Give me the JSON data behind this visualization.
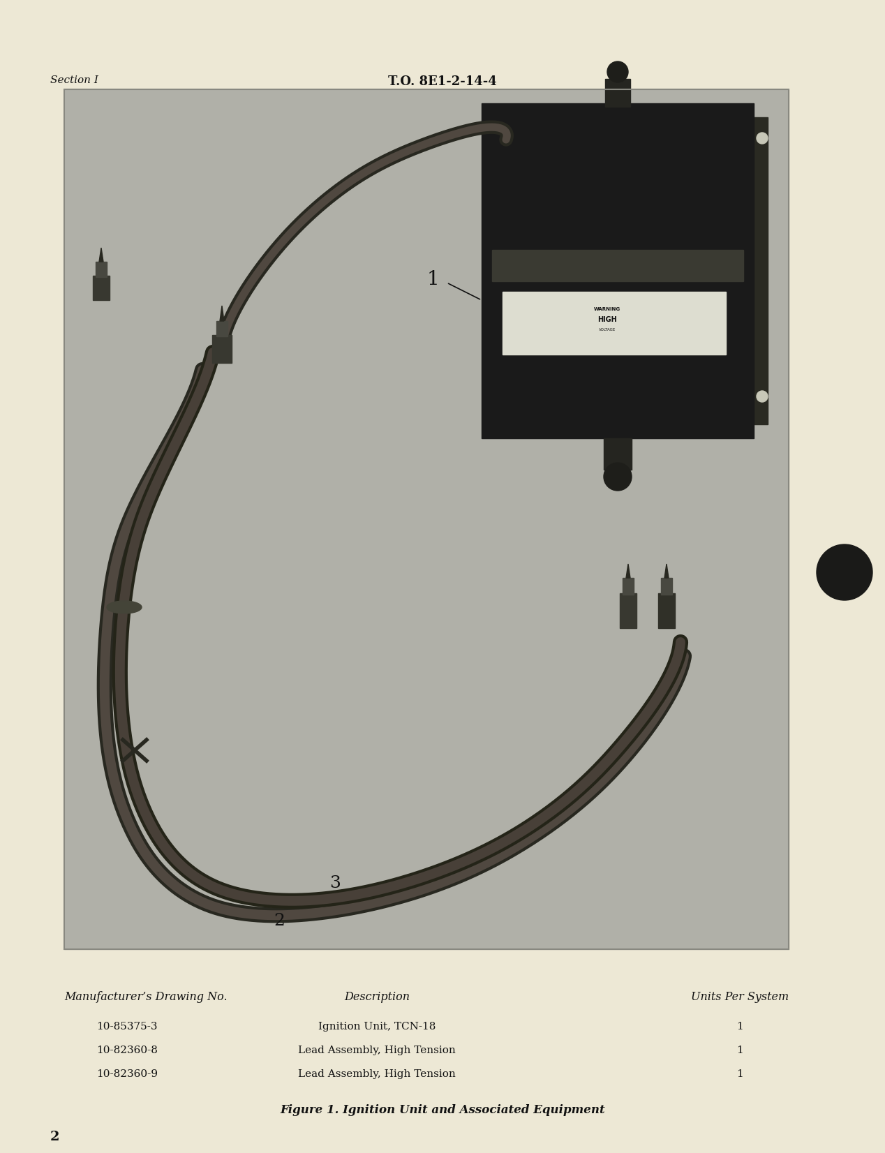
{
  "bg_color": "#ede8d5",
  "header_left": "Section I",
  "header_center": "T.O. 8E1-2-14-4",
  "page_number": "2",
  "table_header": [
    "Manufacturer’s Drawing No.",
    "Description",
    "Units Per System"
  ],
  "table_rows": [
    [
      "10-85375-3",
      "Ignition Unit, TCN-18",
      "1"
    ],
    [
      "10-82360-8",
      "Lead Assembly, High Tension",
      "1"
    ],
    [
      "10-82360-9",
      "Lead Assembly, High Tension",
      "1"
    ]
  ],
  "figure_caption": "Figure 1. Ignition Unit and Associated Equipment",
  "text_color": "#111111",
  "photo_bg": "#b0b0a8",
  "photo_border": "#888880",
  "box_color": "#1a1a1a",
  "box_mid": "#383830",
  "box_label": "#d8d8c8",
  "cable_dark": "#383830",
  "cable_mid": "#585850"
}
